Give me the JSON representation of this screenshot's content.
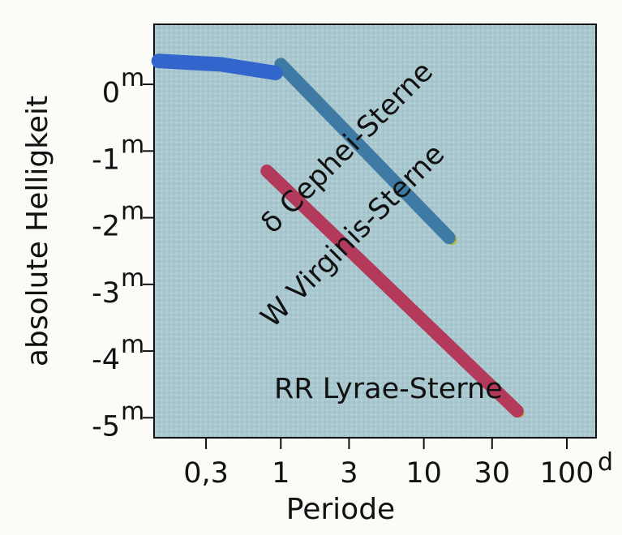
{
  "chart_data": {
    "type": "line",
    "title": "",
    "xlabel": "Periode",
    "ylabel": "absolute Helligkeit",
    "x_scale": "log",
    "y_inverted": true,
    "x_ticks": [
      {
        "value": 0.3,
        "label": "0,3"
      },
      {
        "value": 1,
        "label": "1"
      },
      {
        "value": 3,
        "label": "3"
      },
      {
        "value": 10,
        "label": "10"
      },
      {
        "value": 30,
        "label": "30"
      },
      {
        "value": 100,
        "label": "100",
        "unit": "d"
      }
    ],
    "y_ticks": [
      {
        "value": 0,
        "label": "0",
        "unit": "m"
      },
      {
        "value": -1,
        "label": "-1",
        "unit": "m"
      },
      {
        "value": -2,
        "label": "-2",
        "unit": "m"
      },
      {
        "value": -3,
        "label": "-3",
        "unit": "m"
      },
      {
        "value": -4,
        "label": "-4",
        "unit": "m"
      },
      {
        "value": -5,
        "label": "-5",
        "unit": "m"
      }
    ],
    "xlim": [
      0.13,
      160
    ],
    "ylim": [
      0.9,
      -5.3
    ],
    "series": [
      {
        "name": "δ Cephei-Sterne",
        "color": "#b33a5a",
        "points": [
          {
            "x": 0.8,
            "y": -1.3
          },
          {
            "x": 45,
            "y": -4.9
          }
        ]
      },
      {
        "name": "W Virginis-Sterne",
        "color": "#3f7aa4",
        "points": [
          {
            "x": 1.0,
            "y": 0.3
          },
          {
            "x": 15,
            "y": -2.3
          }
        ]
      },
      {
        "name": "RR Lyrae-Sterne",
        "color": "#3366cc",
        "points": [
          {
            "x": 0.14,
            "y": 0.35
          },
          {
            "x": 0.38,
            "y": 0.3
          },
          {
            "x": 0.92,
            "y": 0.17
          }
        ]
      }
    ],
    "background_color": "#a9c7cf",
    "grid": false,
    "legend": "none"
  }
}
